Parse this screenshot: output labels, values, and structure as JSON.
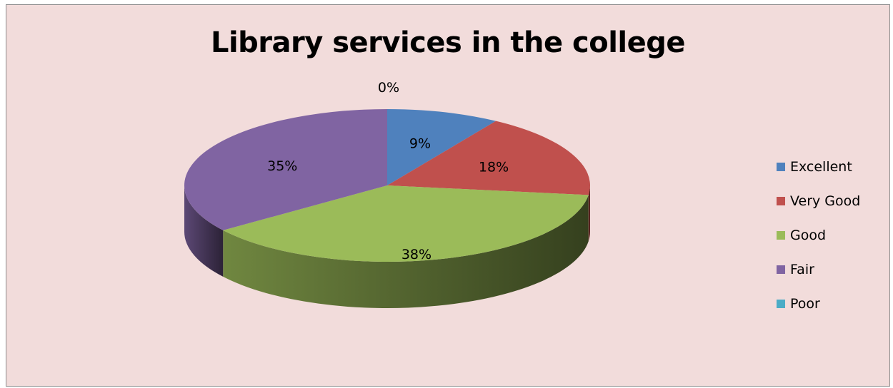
{
  "chart_data": {
    "type": "pie",
    "title": "Library services in the college",
    "categories": [
      "Excellent",
      "Very Good",
      "Good",
      "Fair",
      "Poor"
    ],
    "values": [
      9,
      18,
      38,
      35,
      0
    ],
    "value_labels": [
      "9%",
      "18%",
      "38%",
      "35%",
      "0%"
    ],
    "colors": [
      "#4f81bd",
      "#c0504d",
      "#9bbb59",
      "#8064a2",
      "#4bacc6"
    ],
    "style": "3d",
    "legend_position": "right"
  }
}
